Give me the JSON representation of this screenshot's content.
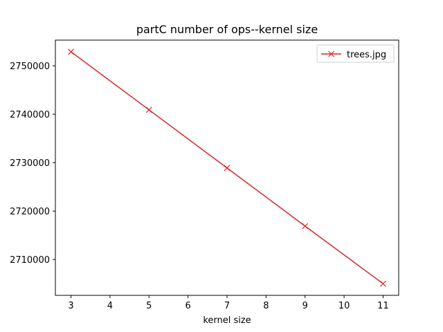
{
  "chart_data": {
    "type": "line",
    "title": "partC number of ops--kernel size",
    "xlabel": "kernel size",
    "ylabel": "",
    "x": [
      3,
      5,
      7,
      9,
      11
    ],
    "series": [
      {
        "name": "trees.jpg",
        "values": [
          2752900,
          2740900,
          2728900,
          2716900,
          2705000
        ],
        "color": "#d62728",
        "marker": "x"
      }
    ],
    "xlim": [
      2.6,
      11.4
    ],
    "ylim": [
      2702600,
      2755300
    ],
    "xticks": [
      3,
      4,
      5,
      6,
      7,
      8,
      9,
      10,
      11
    ],
    "xtick_labels": [
      "3",
      "4",
      "5",
      "6",
      "7",
      "8",
      "9",
      "10",
      "11"
    ],
    "yticks": [
      2710000,
      2720000,
      2730000,
      2740000,
      2750000
    ],
    "ytick_labels": [
      "2710000",
      "2720000",
      "2730000",
      "2740000",
      "2750000"
    ],
    "grid": false,
    "legend_position": "top-right"
  }
}
